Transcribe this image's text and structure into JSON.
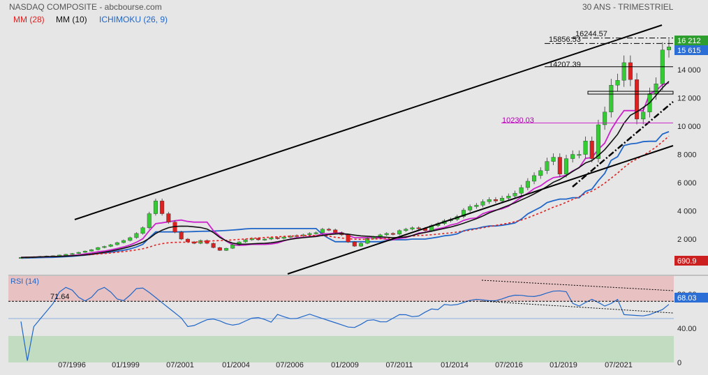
{
  "header": {
    "title": "NASDAQ COMPOSITE - abcbourse.com",
    "period": "30 ANS - TRIMESTRIEL"
  },
  "legend": [
    {
      "label": "MM (28)",
      "color": "#e02020"
    },
    {
      "label": "MM (10)",
      "color": "#111111"
    },
    {
      "label": "ICHIMOKU (26, 9)",
      "color": "#1f66c8"
    }
  ],
  "colors": {
    "up": "#33cc33",
    "down": "#dd2020",
    "mm28": "#e02020",
    "mm10": "#111111",
    "kijun": "#cc22cc",
    "senkou": "#1f66c8",
    "rsi": "#1f66c8",
    "overbought_zone": "#e8c2c2",
    "oversold_zone": "#c2dcc2"
  },
  "chart_data": [
    {
      "type": "candlestick",
      "series_name": "NASDAQ COMPOSITE",
      "x_tick_labels": [
        "07/1996",
        "01/1999",
        "07/2001",
        "01/2004",
        "07/2006",
        "01/2009",
        "07/2011",
        "01/2014",
        "07/2016",
        "01/2019",
        "07/2021"
      ],
      "y_tick_labels": [
        "2 000",
        "4 000",
        "6 000",
        "8 000",
        "10 000",
        "12 000",
        "14 000"
      ],
      "ylim": [
        0,
        16800
      ],
      "current_price_label": "15 615",
      "high_price_label": "16 212",
      "other_label": "690.9",
      "levels": [
        {
          "label": "16244.57",
          "value": 16245,
          "style": "dash-dot"
        },
        {
          "label": "15856.53",
          "value": 15857,
          "style": "dash-dot"
        },
        {
          "label": "14207.39",
          "value": 14207,
          "style": "solid"
        },
        {
          "label": "10230.03",
          "value": 10230,
          "style": "magenta"
        }
      ],
      "quarterly_close": [
        700,
        720,
        750,
        780,
        800,
        820,
        870,
        920,
        980,
        1060,
        1150,
        1250,
        1400,
        1480,
        1600,
        1750,
        1900,
        2100,
        2400,
        2800,
        3800,
        4700,
        3800,
        3200,
        2500,
        2000,
        1800,
        1700,
        1900,
        1700,
        1400,
        1200,
        1350,
        1600,
        1800,
        1950,
        2050,
        1950,
        2000,
        2100,
        2050,
        2150,
        2200,
        2250,
        2300,
        2400,
        2450,
        2700,
        2650,
        2450,
        2300,
        1800,
        1500,
        1700,
        2050,
        2150,
        2300,
        2400,
        2350,
        2600,
        2700,
        2800,
        2750,
        2600,
        2950,
        3100,
        3300,
        3400,
        3600,
        4050,
        4300,
        4400,
        4650,
        4800,
        4700,
        4900,
        5050,
        5250,
        5650,
        6100,
        6500,
        6850,
        7500,
        7800,
        6600,
        7700,
        8000,
        8000,
        8950,
        7700,
        10100,
        11000,
        12900,
        13250,
        14500,
        13300,
        10500,
        11000,
        12300,
        13000,
        15400,
        15615
      ]
    },
    {
      "type": "line",
      "series_name": "RSI (14)",
      "y_tick_labels": [
        "0",
        "40.00",
        "80.00"
      ],
      "ylim": [
        0,
        100
      ],
      "overbought_label": "71.64",
      "overbought_value": 71.64,
      "current_label": "68.03",
      "current_value": 68.03
    }
  ]
}
